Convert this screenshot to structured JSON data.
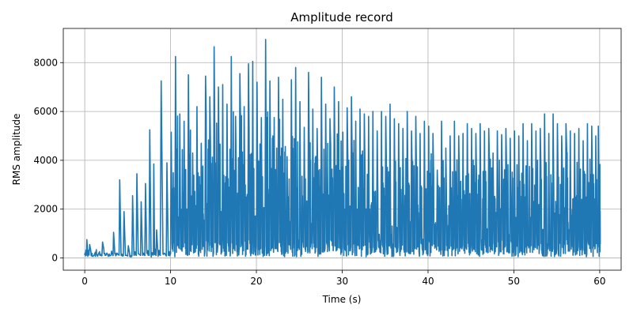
{
  "chart_data": {
    "type": "line",
    "title": "Amplitude record",
    "xlabel": "Time (s)",
    "ylabel": "RMS amplitude",
    "xlim": [
      -2.5,
      62.5
    ],
    "ylim": [
      -500,
      9400
    ],
    "xticks": [
      0,
      10,
      20,
      30,
      40,
      50,
      60
    ],
    "yticks": [
      0,
      2000,
      4000,
      6000,
      8000
    ],
    "grid": true,
    "series_color": "#1f77b4",
    "peaks": [
      [
        0.0,
        200
      ],
      [
        0.2,
        750
      ],
      [
        0.5,
        550
      ],
      [
        1.0,
        100
      ],
      [
        1.5,
        150
      ],
      [
        2.0,
        650
      ],
      [
        2.5,
        200
      ],
      [
        3.0,
        100
      ],
      [
        3.3,
        1050
      ],
      [
        3.7,
        200
      ],
      [
        4.0,
        3200
      ],
      [
        4.5,
        1900
      ],
      [
        5.0,
        500
      ],
      [
        5.5,
        2550
      ],
      [
        6.0,
        3450
      ],
      [
        6.5,
        2300
      ],
      [
        7.0,
        3050
      ],
      [
        7.5,
        5250
      ],
      [
        8.0,
        3850
      ],
      [
        8.3,
        1150
      ],
      [
        8.8,
        7250
      ],
      [
        9.5,
        3900
      ],
      [
        10.0,
        5150
      ],
      [
        10.5,
        8250
      ],
      [
        11.0,
        5900
      ],
      [
        11.5,
        5600
      ],
      [
        12.0,
        7500
      ],
      [
        12.5,
        4300
      ],
      [
        13.0,
        6200
      ],
      [
        13.5,
        4700
      ],
      [
        14.0,
        7450
      ],
      [
        14.5,
        6600
      ],
      [
        15.0,
        8650
      ],
      [
        15.5,
        7000
      ],
      [
        16.0,
        7100
      ],
      [
        16.5,
        6300
      ],
      [
        17.0,
        8250
      ],
      [
        17.5,
        5800
      ],
      [
        18.0,
        7550
      ],
      [
        18.5,
        6200
      ],
      [
        19.0,
        7950
      ],
      [
        19.5,
        8050
      ],
      [
        20.0,
        7200
      ],
      [
        20.5,
        5750
      ],
      [
        21.0,
        8950
      ],
      [
        21.5,
        7250
      ],
      [
        22.0,
        5750
      ],
      [
        22.5,
        7400
      ],
      [
        23.0,
        6500
      ],
      [
        23.5,
        4150
      ],
      [
        24.0,
        7300
      ],
      [
        24.5,
        7800
      ],
      [
        25.0,
        6400
      ],
      [
        25.5,
        5350
      ],
      [
        26.0,
        7600
      ],
      [
        26.5,
        6100
      ],
      [
        27.0,
        5300
      ],
      [
        27.5,
        7400
      ],
      [
        28.0,
        6300
      ],
      [
        28.5,
        5700
      ],
      [
        29.0,
        7000
      ],
      [
        29.5,
        6400
      ],
      [
        30.0,
        5150
      ],
      [
        30.5,
        6150
      ],
      [
        31.0,
        6600
      ],
      [
        31.5,
        5600
      ],
      [
        32.0,
        6100
      ],
      [
        32.5,
        5900
      ],
      [
        33.0,
        5800
      ],
      [
        33.5,
        6000
      ],
      [
        34.0,
        5200
      ],
      [
        34.5,
        6000
      ],
      [
        35.0,
        5800
      ],
      [
        35.5,
        6300
      ],
      [
        36.0,
        5700
      ],
      [
        36.5,
        5500
      ],
      [
        37.0,
        5300
      ],
      [
        37.5,
        6000
      ],
      [
        38.0,
        5200
      ],
      [
        38.5,
        5800
      ],
      [
        39.0,
        5100
      ],
      [
        39.5,
        5600
      ],
      [
        40.0,
        5400
      ],
      [
        40.5,
        5100
      ],
      [
        41.0,
        3600
      ],
      [
        41.5,
        5600
      ],
      [
        42.0,
        4500
      ],
      [
        42.5,
        5000
      ],
      [
        43.0,
        5600
      ],
      [
        43.5,
        5000
      ],
      [
        44.0,
        5100
      ],
      [
        44.5,
        5500
      ],
      [
        45.0,
        5300
      ],
      [
        45.5,
        5100
      ],
      [
        46.0,
        5500
      ],
      [
        46.5,
        5200
      ],
      [
        47.0,
        5300
      ],
      [
        47.5,
        4300
      ],
      [
        48.0,
        5200
      ],
      [
        48.5,
        5050
      ],
      [
        49.0,
        5300
      ],
      [
        49.5,
        4900
      ],
      [
        50.0,
        5200
      ],
      [
        50.5,
        5000
      ],
      [
        51.0,
        5500
      ],
      [
        51.5,
        4800
      ],
      [
        52.0,
        5500
      ],
      [
        52.5,
        5200
      ],
      [
        53.0,
        5300
      ],
      [
        53.5,
        5900
      ],
      [
        54.0,
        5100
      ],
      [
        54.5,
        5900
      ],
      [
        55.0,
        5500
      ],
      [
        55.5,
        5000
      ],
      [
        56.0,
        5500
      ],
      [
        56.5,
        5200
      ],
      [
        57.0,
        5100
      ],
      [
        57.5,
        5300
      ],
      [
        58.0,
        4800
      ],
      [
        58.5,
        5500
      ],
      [
        59.0,
        5400
      ],
      [
        59.5,
        5000
      ],
      [
        59.8,
        5400
      ]
    ]
  }
}
